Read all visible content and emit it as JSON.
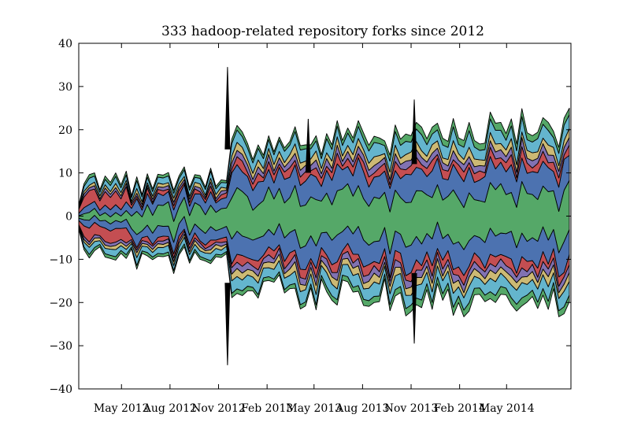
{
  "chart_data": {
    "type": "area",
    "subtype": "streamgraph",
    "title": "333 hadoop-related repository forks since 2012",
    "xlabel": "",
    "ylabel": "",
    "ylim": [
      -40,
      40
    ],
    "xlim": [
      "2012-02-10",
      "2014-08-31"
    ],
    "yticks": [
      -40,
      -30,
      -20,
      -10,
      0,
      10,
      20,
      30,
      40
    ],
    "yticklabels": [
      "−40",
      "−30",
      "−20",
      "−10",
      "0",
      "10",
      "20",
      "30",
      "40"
    ],
    "xticks": [
      "2012-05-01",
      "2012-08-01",
      "2012-11-01",
      "2013-02-01",
      "2013-05-01",
      "2013-08-01",
      "2013-11-01",
      "2014-02-01",
      "2014-05-01"
    ],
    "xticklabels": [
      "May 2012",
      "Aug 2012",
      "Nov 2012",
      "Feb 2013",
      "May 2013",
      "Aug 2013",
      "Nov 2013",
      "Feb 2014",
      "May 2014"
    ],
    "grid": false,
    "legend": "none",
    "x": [
      "2012-02-10",
      "2012-02-20",
      "2012-03-01",
      "2012-03-11",
      "2012-03-21",
      "2012-03-31",
      "2012-04-10",
      "2012-04-20",
      "2012-04-30",
      "2012-05-10",
      "2012-05-20",
      "2012-05-30",
      "2012-06-09",
      "2012-06-19",
      "2012-06-29",
      "2012-07-09",
      "2012-07-19",
      "2012-07-29",
      "2012-08-08",
      "2012-08-18",
      "2012-08-28",
      "2012-09-07",
      "2012-09-17",
      "2012-09-27",
      "2012-10-07",
      "2012-10-17",
      "2012-10-27",
      "2012-11-06",
      "2012-11-16",
      "2012-11-26",
      "2012-12-06",
      "2012-12-16",
      "2012-12-26",
      "2013-01-05",
      "2013-01-15",
      "2013-01-25",
      "2013-02-04",
      "2013-02-14",
      "2013-02-24",
      "2013-03-06",
      "2013-03-16",
      "2013-03-26",
      "2013-04-05",
      "2013-04-15",
      "2013-04-25",
      "2013-05-05",
      "2013-05-15",
      "2013-05-25",
      "2013-06-04",
      "2013-06-14",
      "2013-06-24",
      "2013-07-04",
      "2013-07-14",
      "2013-07-24",
      "2013-08-03",
      "2013-08-13",
      "2013-08-23",
      "2013-09-02",
      "2013-09-12",
      "2013-09-22",
      "2013-10-02",
      "2013-10-12",
      "2013-10-22",
      "2013-11-01",
      "2013-11-11",
      "2013-11-21",
      "2013-12-01",
      "2013-12-11",
      "2013-12-21",
      "2013-12-31",
      "2014-01-10",
      "2014-01-20",
      "2014-01-30",
      "2014-02-09",
      "2014-02-19",
      "2014-03-01",
      "2014-03-11",
      "2014-03-21",
      "2014-03-31",
      "2014-04-10",
      "2014-04-20",
      "2014-04-30",
      "2014-05-10",
      "2014-05-20",
      "2014-05-30",
      "2014-06-09",
      "2014-06-19",
      "2014-06-29",
      "2014-07-09",
      "2014-07-19",
      "2014-07-29",
      "2014-08-08",
      "2014-08-18",
      "2014-08-28"
    ],
    "upper_envelope": [
      2.6,
      7.5,
      9.6,
      10.0,
      6.1,
      9.3,
      7.8,
      10.0,
      7.2,
      10.4,
      4.7,
      9.1,
      5.0,
      9.8,
      6.3,
      9.7,
      9.5,
      10.1,
      6.0,
      9.3,
      11.4,
      6.6,
      9.6,
      9.4,
      6.7,
      11.1,
      6.9,
      8.4,
      8.2,
      17.8,
      21.0,
      19.5,
      16.8,
      13.1,
      16.5,
      14.1,
      18.6,
      14.9,
      18.3,
      15.8,
      17.3,
      20.7,
      16.3,
      16.5,
      16.5,
      18.6,
      14.2,
      19.1,
      16.5,
      22.1,
      17.5,
      20.4,
      18.1,
      22.1,
      19.2,
      16.4,
      18.5,
      18.1,
      17.4,
      14.1,
      21.1,
      17.8,
      19.0,
      18.6,
      21.7,
      20.6,
      17.9,
      20.6,
      21.5,
      18.0,
      17.3,
      22.6,
      18.1,
      17.5,
      21.7,
      17.5,
      16.7,
      16.9,
      24.1,
      21.5,
      21.7,
      19.1,
      22.5,
      16.7,
      24.9,
      19.3,
      18.6,
      19.4,
      22.8,
      21.7,
      19.6,
      15.9,
      22.7,
      25.0
    ],
    "lower_envelope": [
      -3.0,
      -7.8,
      -9.7,
      -8.0,
      -7.1,
      -9.5,
      -9.8,
      -10.2,
      -8.6,
      -9.8,
      -7.6,
      -12.3,
      -8.6,
      -9.2,
      -10.1,
      -9.3,
      -9.4,
      -9.1,
      -13.3,
      -9.0,
      -7.1,
      -10.9,
      -8.3,
      -10.0,
      -10.4,
      -11.0,
      -9.4,
      -9.6,
      -8.7,
      -18.9,
      -17.9,
      -18.4,
      -17.3,
      -17.3,
      -19.0,
      -15.1,
      -14.9,
      -15.3,
      -13.6,
      -17.8,
      -16.8,
      -16.7,
      -21.5,
      -20.8,
      -16.6,
      -21.7,
      -14.6,
      -17.5,
      -19.5,
      -20.6,
      -14.8,
      -15.2,
      -17.6,
      -17.4,
      -20.7,
      -20.9,
      -20.0,
      -19.8,
      -14.5,
      -21.9,
      -18.5,
      -17.7,
      -23.1,
      -22.1,
      -20.5,
      -21.2,
      -17.0,
      -21.6,
      -15.6,
      -19.5,
      -16.9,
      -23.0,
      -20.0,
      -23.3,
      -22.0,
      -18.2,
      -18.1,
      -19.8,
      -19.1,
      -20.0,
      -18.1,
      -18.2,
      -20.5,
      -22.0,
      -20.8,
      -19.9,
      -18.6,
      -21.4,
      -18.3,
      -21.6,
      -16.8,
      -23.3,
      -22.6,
      -19.8
    ],
    "spikes": [
      {
        "x": "2012-11-18",
        "y": 34.5
      },
      {
        "x": "2012-11-18",
        "y": -34.5
      },
      {
        "x": "2013-04-20",
        "y": 22.5
      },
      {
        "x": "2013-11-07",
        "y": 27.0
      },
      {
        "x": "2013-11-07",
        "y": -29.5
      }
    ],
    "series": [
      {
        "color": "#4c72b0"
      },
      {
        "color": "#55a868"
      },
      {
        "color": "#c44e52"
      },
      {
        "color": "#8172b2"
      },
      {
        "color": "#ccb974"
      },
      {
        "color": "#64b5cd"
      }
    ]
  }
}
